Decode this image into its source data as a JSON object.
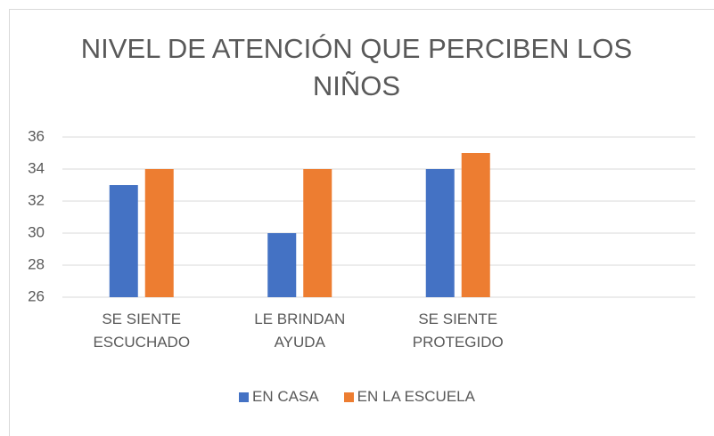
{
  "chart_data": {
    "type": "bar",
    "title": "NIVEL DE ATENCIÓN QUE PERCIBEN LOS NIÑOS",
    "categories": [
      "SE SIENTE ESCUCHADO",
      "LE BRINDAN AYUDA",
      "SE SIENTE PROTEGIDO",
      null
    ],
    "series": [
      {
        "name": "EN CASA",
        "color": "#4472c4",
        "values": [
          33,
          30,
          34,
          null
        ]
      },
      {
        "name": "EN LA ESCUELA",
        "color": "#ed7d31",
        "values": [
          34,
          34,
          35,
          null
        ]
      }
    ],
    "ylim": [
      26,
      36
    ],
    "yticks": [
      26,
      28,
      30,
      32,
      34,
      36
    ],
    "grid": true,
    "legend": "bottom"
  }
}
